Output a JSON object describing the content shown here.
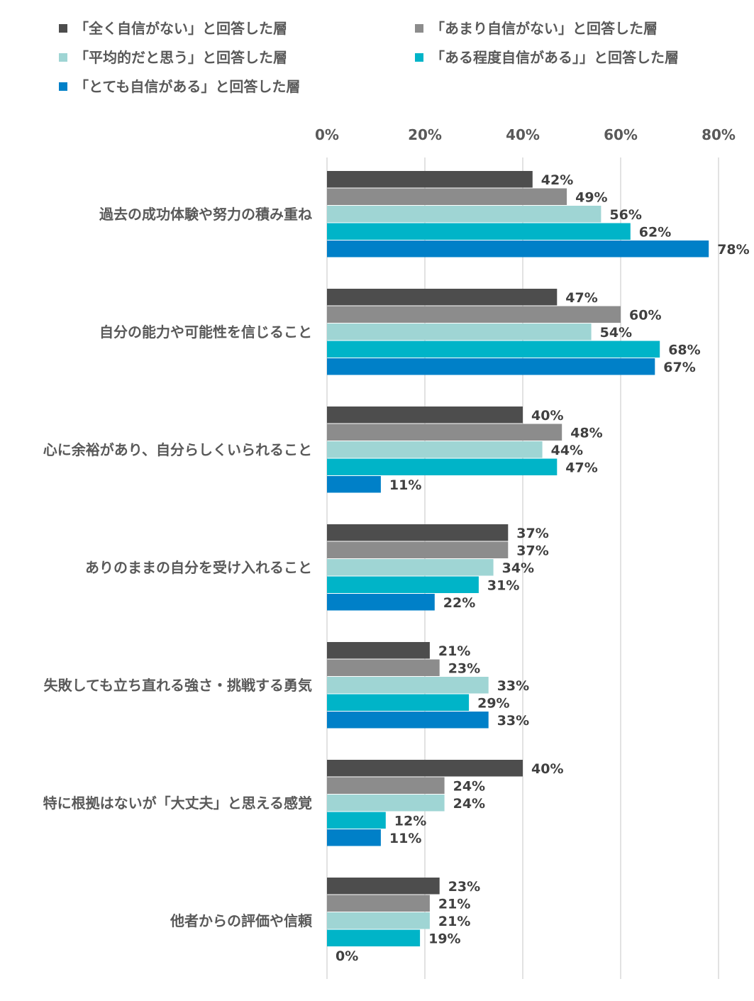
{
  "chart_data": {
    "type": "bar",
    "orientation": "horizontal",
    "title": "",
    "xlabel": "",
    "ylabel": "",
    "xlim": [
      0,
      80
    ],
    "x_ticks": [
      "0%",
      "20%",
      "40%",
      "60%",
      "80%"
    ],
    "x_tick_values": [
      0,
      20,
      40,
      60,
      80
    ],
    "grid": "vertical",
    "legend_position": "top",
    "categories": [
      "過去の成功体験や努力の積み重ね",
      "自分の能力や可能性を信じること",
      "心に余裕があり、自分らしくいられること",
      "ありのままの自分を受け入れること",
      "失敗しても立ち直れる強さ・挑戦する勇気",
      "特に根拠はないが「大丈夫」と思える感覚",
      "他者からの評価や信頼"
    ],
    "series": [
      {
        "name": "「全く自信がない」と回答した層",
        "color": "#4d4d4d",
        "values": [
          42,
          47,
          40,
          37,
          21,
          40,
          23
        ]
      },
      {
        "name": "「あまり自信がない」と回答した層",
        "color": "#8c8c8c",
        "values": [
          49,
          60,
          48,
          37,
          23,
          24,
          21
        ]
      },
      {
        "name": "「平均的だと思う」と回答した層",
        "color": "#9fd5d4",
        "values": [
          56,
          54,
          44,
          34,
          33,
          24,
          21
        ]
      },
      {
        "name": "「ある程度自信がある」」と回答した層",
        "color": "#00b4c8",
        "values": [
          62,
          68,
          47,
          31,
          29,
          12,
          19
        ]
      },
      {
        "name": "「とても自信がある」と回答した層",
        "color": "#0080c8",
        "values": [
          78,
          67,
          11,
          22,
          33,
          11,
          0
        ]
      }
    ],
    "value_suffix": "%"
  }
}
